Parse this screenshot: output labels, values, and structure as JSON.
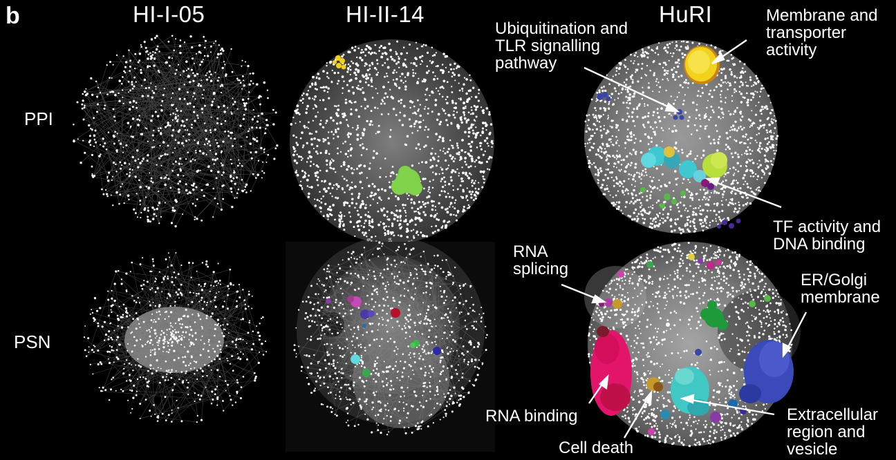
{
  "panel_letter": "b",
  "columns": [
    "HI-I-05",
    "HI-II-14",
    "HuRI"
  ],
  "rows": [
    "PPI",
    "PSN"
  ],
  "annotations": {
    "membrane": "Membrane and\ntransporter\nactivity",
    "ubiquitination": "Ubiquitination and\nTLR signalling\npathway",
    "tf": "TF activity and\nDNA binding",
    "rna_splicing": "RNA\nsplicing",
    "er_golgi": "ER/Golgi\nmembrane",
    "rna_binding": "RNA binding",
    "cell_death": "Cell death",
    "extracellular": "Extracellular\nregion and\nvesicle"
  },
  "colors": {
    "background": "#000000",
    "node": "#ffffff",
    "edge": "#8a8a8a",
    "membrane_cluster": "#f2d21a",
    "tf_cluster_cyan": "#3fc8d2",
    "tf_cluster_green": "#b7e03c",
    "ubiquitination_cluster": "#3a45a8",
    "green_cluster": "#7fd24a",
    "rna_binding_cluster": "#e3156a",
    "er_golgi_cluster": "#3a4ab8",
    "extracellular_cluster": "#3fc8c4",
    "cell_death_cluster": "#c69a2a",
    "dark_green_cluster": "#1e9a3a",
    "rna_splicing_cluster": "#b43aa4"
  }
}
